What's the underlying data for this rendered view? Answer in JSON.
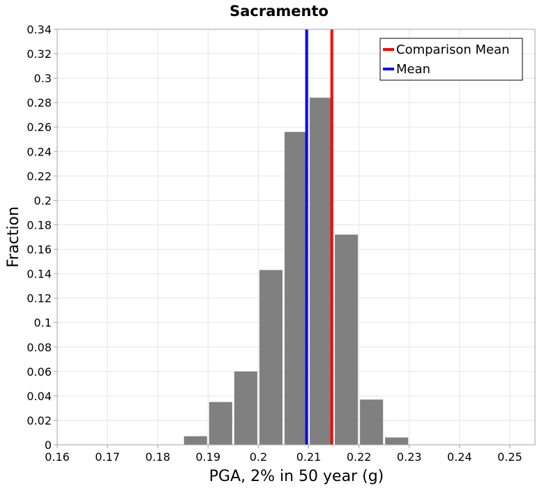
{
  "chart_data": {
    "type": "bar",
    "title": "Sacramento",
    "xlabel": "PGA, 2% in 50 year (g)",
    "ylabel": "Fraction",
    "xlim": [
      0.16,
      0.255
    ],
    "ylim": [
      0,
      0.34
    ],
    "xticks": [
      "0.16",
      "0.17",
      "0.18",
      "0.19",
      "0.2",
      "0.21",
      "0.22",
      "0.23",
      "0.24",
      "0.25"
    ],
    "yticks": [
      "0",
      "0.02",
      "0.04",
      "0.06",
      "0.08",
      "0.1",
      "0.12",
      "0.14",
      "0.16",
      "0.18",
      "0.2",
      "0.22",
      "0.24",
      "0.26",
      "0.28",
      "0.3",
      "0.32",
      "0.34"
    ],
    "grid": true,
    "legend_position": "top-right",
    "bins": [
      {
        "x": 0.1875,
        "value": 0.007
      },
      {
        "x": 0.1925,
        "value": 0.035
      },
      {
        "x": 0.1975,
        "value": 0.06
      },
      {
        "x": 0.2025,
        "value": 0.143
      },
      {
        "x": 0.2075,
        "value": 0.256
      },
      {
        "x": 0.2125,
        "value": 0.284
      },
      {
        "x": 0.2175,
        "value": 0.172
      },
      {
        "x": 0.2225,
        "value": 0.037
      },
      {
        "x": 0.2275,
        "value": 0.006
      }
    ],
    "bin_width": 0.005,
    "bar_color": "#808080",
    "vertical_lines": [
      {
        "name": "Comparison Mean",
        "x": 0.2146,
        "color": "#ff0000"
      },
      {
        "name": "Mean",
        "x": 0.2096,
        "color": "#0000ff"
      }
    ]
  }
}
